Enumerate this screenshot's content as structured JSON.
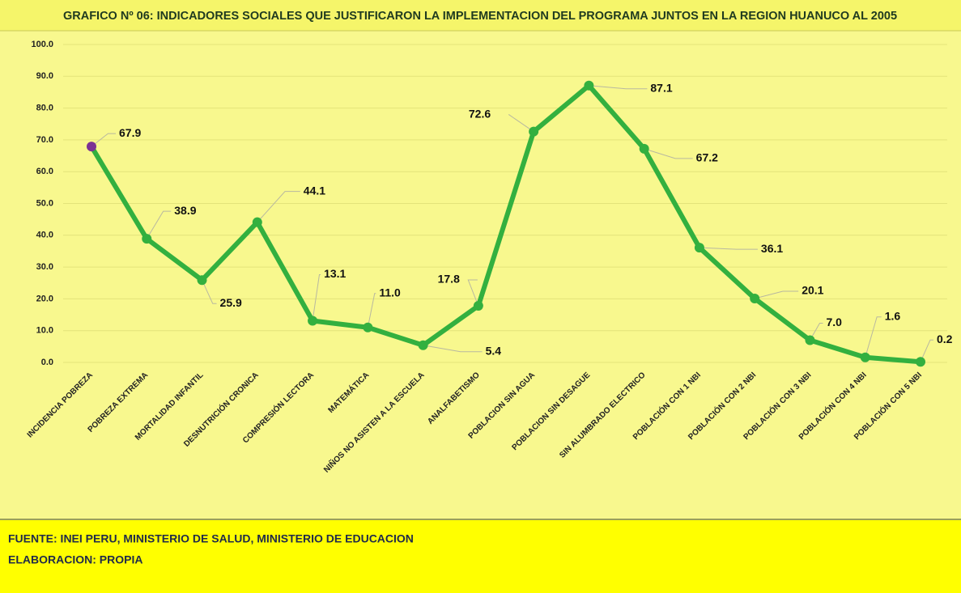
{
  "chart_data": {
    "type": "line",
    "title": "GRAFICO Nº 06: INDICADORES SOCIALES QUE JUSTIFICARON LA IMPLEMENTACION DEL PROGRAMA JUNTOS EN LA REGION HUANUCO AL 2005",
    "categories": [
      "INCIDENCIA POBREZA",
      "POBREZA EXTREMA",
      "MORTALIDAD INFANTIL",
      "DESNUTRICIÓN CRONICA",
      "COMPRESIÓN LECTORA",
      "MATEMÁTICA",
      "NIÑOS NO ASISTEN A LA ESCUELA",
      "ANALFABETISMO",
      "POBLACION SIN AGUA",
      "POBLACION SIN DESAGUE",
      "SIN ALUMBRADO ELECTRICO",
      "POBLACIÓN CON 1 NBI",
      "POBLACIÓN CON 2 NBI",
      "POBLACIÓN CON 3 NBI",
      "POBLACIÓN CON 4 NBI",
      "POBLACIÓN CON 5 NBI"
    ],
    "values": [
      67.9,
      38.9,
      25.9,
      44.1,
      13.1,
      11.0,
      5.4,
      17.8,
      72.6,
      87.1,
      67.2,
      36.1,
      20.1,
      7.0,
      1.6,
      0.2
    ],
    "value_labels": [
      "67.9",
      "38.9",
      "25.9",
      "44.1",
      "13.1",
      "11.0",
      "5.4",
      "17.8",
      "72.6",
      "87.1",
      "67.2",
      "36.1",
      "20.1",
      "7.0",
      "1.6",
      "0.2"
    ],
    "color": "#33b03f",
    "marker_colors": [
      "#7b3294",
      "#33b03f",
      "#33b03f",
      "#33b03f",
      "#33b03f",
      "#33b03f",
      "#33b03f",
      "#33b03f",
      "#33b03f",
      "#33b03f",
      "#33b03f",
      "#33b03f",
      "#33b03f",
      "#33b03f",
      "#33b03f",
      "#33b03f"
    ],
    "ylim": [
      0,
      100
    ],
    "yticks": [
      {
        "value": 0,
        "label": "0.0"
      },
      {
        "value": 10,
        "label": "10.0"
      },
      {
        "value": 20,
        "label": "20.0"
      },
      {
        "value": 30,
        "label": "30.0"
      },
      {
        "value": 40,
        "label": "40.0"
      },
      {
        "value": 50,
        "label": "50.0"
      },
      {
        "value": 60,
        "label": "60.0"
      },
      {
        "value": 70,
        "label": "70.0"
      },
      {
        "value": 80,
        "label": "80.0"
      },
      {
        "value": 90,
        "label": "90.0"
      },
      {
        "value": 100,
        "label": "100.0"
      }
    ],
    "grid": true,
    "footnotes": [
      "FUENTE: INEI PERU, MINISTERIO DE SALUD, MINISTERIO DE EDUCACION",
      "ELABORACION: PROPIA"
    ]
  }
}
